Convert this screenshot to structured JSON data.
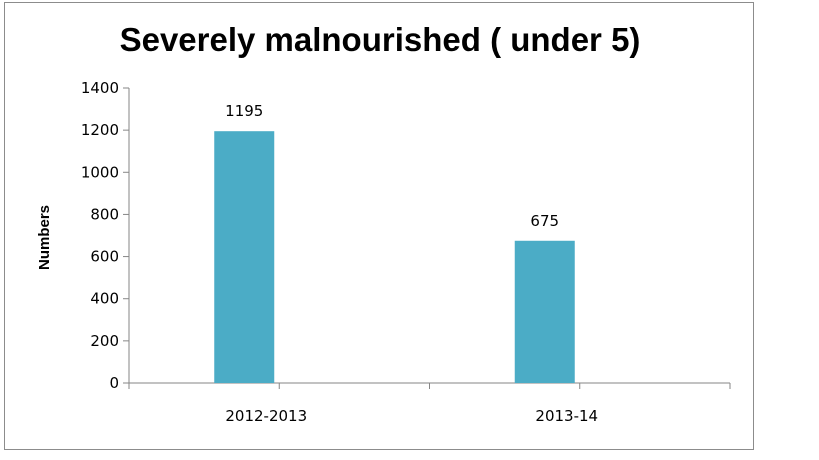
{
  "chart_data": {
    "type": "bar",
    "title": "Severely malnourished ( under 5)",
    "categories": [
      "2012-2013",
      "2013-14"
    ],
    "values": [
      1195,
      675
    ],
    "data_labels": [
      "1195",
      "675"
    ],
    "xlabel": "",
    "ylabel": "Numbers",
    "ylim": [
      0,
      1400
    ],
    "yticks": [
      "0",
      "200",
      "400",
      "600",
      "800",
      "1000",
      "1200",
      "1400"
    ],
    "ytick_values": [
      0,
      200,
      400,
      600,
      800,
      1000,
      1200,
      1400
    ],
    "grid": false,
    "legend": "none",
    "bar_color": "#4bacc6"
  }
}
